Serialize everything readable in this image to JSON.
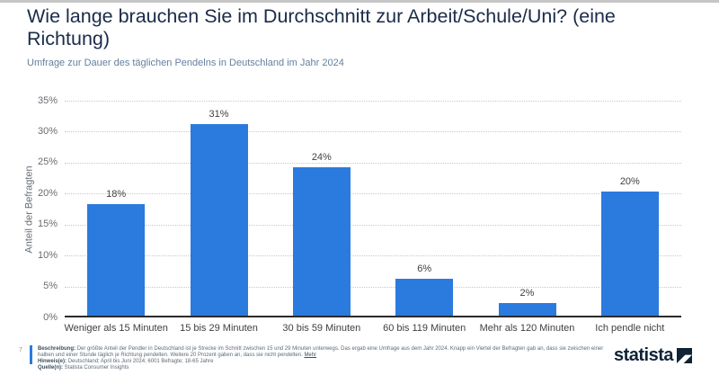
{
  "page": {
    "title": "Wie lange brauchen Sie im Durchschnitt zur Arbeit/Schule/Uni? (eine Richtung)",
    "subtitle": "Umfrage zur Dauer des täglichen Pendelns in Deutschland im Jahr 2024",
    "page_number": "7"
  },
  "chart_data": {
    "type": "bar",
    "categories": [
      "Weniger als 15 Minuten",
      "15 bis 29 Minuten",
      "30 bis 59 Minuten",
      "60 bis 119 Minuten",
      "Mehr als 120 Minuten",
      "Ich pendle nicht"
    ],
    "values": [
      18,
      31,
      24,
      6,
      2,
      20
    ],
    "value_labels": [
      "18%",
      "31%",
      "24%",
      "6%",
      "2%",
      "20%"
    ],
    "title": "Wie lange brauchen Sie im Durchschnitt zur Arbeit/Schule/Uni? (eine Richtung)",
    "xlabel": "",
    "ylabel": "Anteil der Befragten",
    "ylim": [
      0,
      35
    ],
    "y_ticks": [
      "0%",
      "5%",
      "10%",
      "15%",
      "20%",
      "25%",
      "30%",
      "35%"
    ],
    "grid": "horizontal-dotted",
    "legend": "none",
    "bar_color": "#2b7ade"
  },
  "footer": {
    "beschreibung_label": "Beschreibung:",
    "beschreibung_text": "Der größte Anteil der Pendler in Deutschland ist je Strecke im Schnitt zwischen 15 und 29 Minuten unterwegs. Das ergab eine Umfrage aus dem Jahr 2024. Knapp ein Viertel der Befragten gab an, dass sie zwischen einer halben und einer Stunde täglich je Richtung pendelten. Weitere 20 Prozent gaben an, dass sie nicht pendelten.",
    "mehr_link": "Mehr",
    "hinweis_label": "Hinweis(e):",
    "hinweis_text": "Deutschland; April bis Juni 2024; 6001 Befragte; 18-65 Jahre",
    "quelle_label": "Quelle(n):",
    "quelle_text": "Statista Consumer Insights",
    "logo_text": "statista"
  },
  "colors": {
    "bar_blue": "#2b7ade",
    "title_navy": "#1a2b49",
    "subtitle_blue_gray": "#64809e",
    "logo_navy": "#0e2336",
    "axis_line": "#2b2b2b",
    "gridline": "#c9c9c9"
  }
}
